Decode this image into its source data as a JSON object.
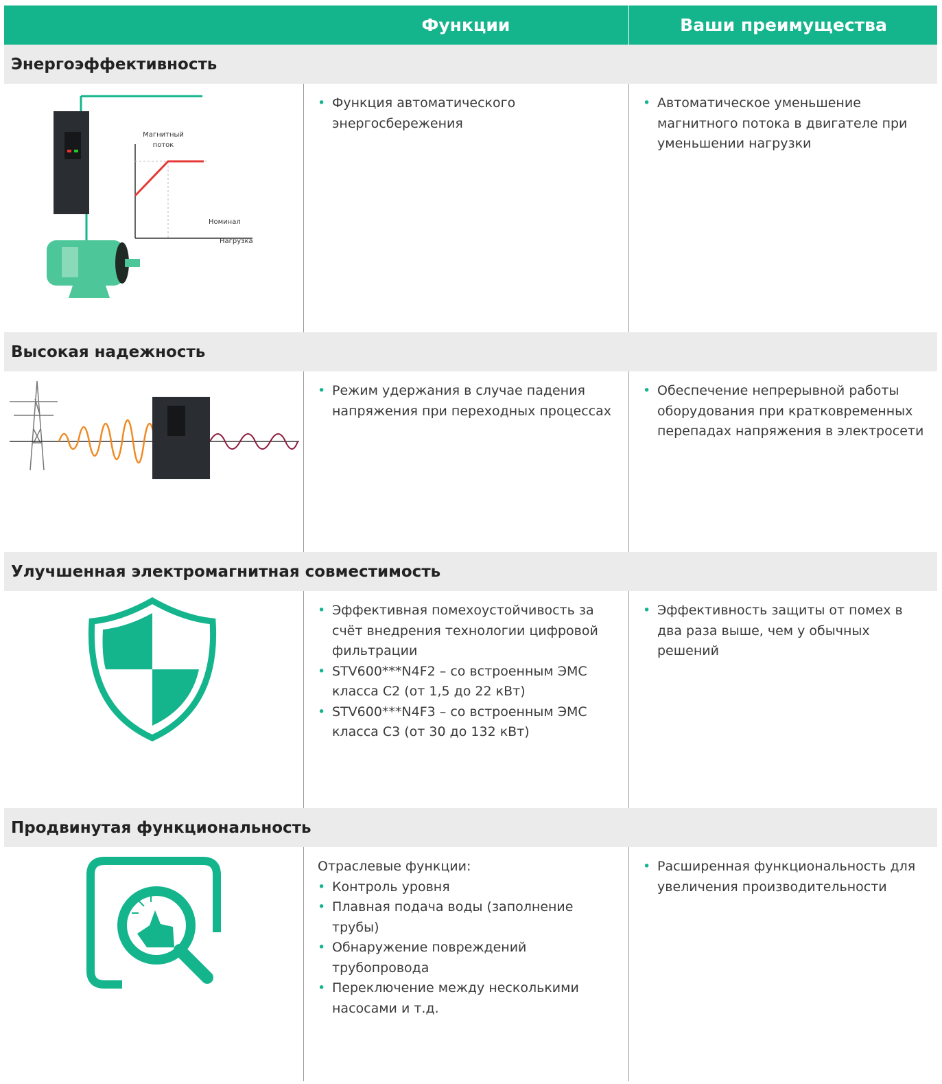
{
  "header": {
    "columns": [
      "Функции",
      "Ваши преимущества"
    ]
  },
  "sections": [
    {
      "title": "Энергоэффективность",
      "image_labels": [
        "Магнитный",
        "поток",
        "Номинал",
        "Нагрузка"
      ],
      "functions": {
        "items": [
          "Функция автоматического энергосбережения"
        ]
      },
      "benefits": {
        "items": [
          "Автоматическое уменьшение магнитного потока в двигателе при уменьшении нагрузки"
        ]
      }
    },
    {
      "title": "Высокая надежность",
      "functions": {
        "items": [
          "Режим удержания в случае падения напряжения при переходных процессах"
        ]
      },
      "benefits": {
        "items": [
          "Обеспечение непрерывной работы оборудования при кратковременных перепадах напряжения в электросети"
        ]
      }
    },
    {
      "title": "Улучшенная электромагнитная совместимость",
      "functions": {
        "items": [
          "Эффективная помехоустойчивость за счёт внедрения технологии цифровой фильтрации",
          "STV600***N4F2 – со встроенным ЭМС класса C2 (от 1,5 до 22 кВт)",
          "STV600***N4F3 – со встроенным ЭМС класса C3 (от 30 до 132 кВт)"
        ]
      },
      "benefits": {
        "items": [
          "Эффективность защиты от помех в два раза выше, чем у обычных решений"
        ]
      }
    },
    {
      "title": "Продвинутая функциональность",
      "functions": {
        "intro": "Отраслевые функции:",
        "items": [
          "Контроль уровня",
          "Плавная подача воды (заполнение трубы)",
          "Обнаружение повреждений трубопровода",
          "Переключение между несколькими насосами и т.д."
        ]
      },
      "benefits": {
        "items": [
          "Расширенная функциональность для увеличения производительности"
        ]
      }
    }
  ]
}
